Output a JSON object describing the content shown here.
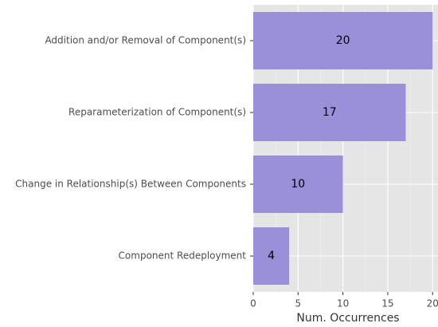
{
  "chart_data": {
    "type": "barh",
    "categories": [
      "Addition and/or Removal of Component(s)",
      "Reparameterization of Component(s)",
      "Change in Relationship(s) Between Components",
      "Component Redeployment"
    ],
    "values": [
      20,
      17,
      10,
      4
    ],
    "color": "#9a8fd9",
    "xlabel": "Num. Occurrences",
    "xlim": [
      0,
      20.6
    ],
    "xticks": [
      0,
      5,
      10,
      15,
      20
    ],
    "grid": true
  }
}
